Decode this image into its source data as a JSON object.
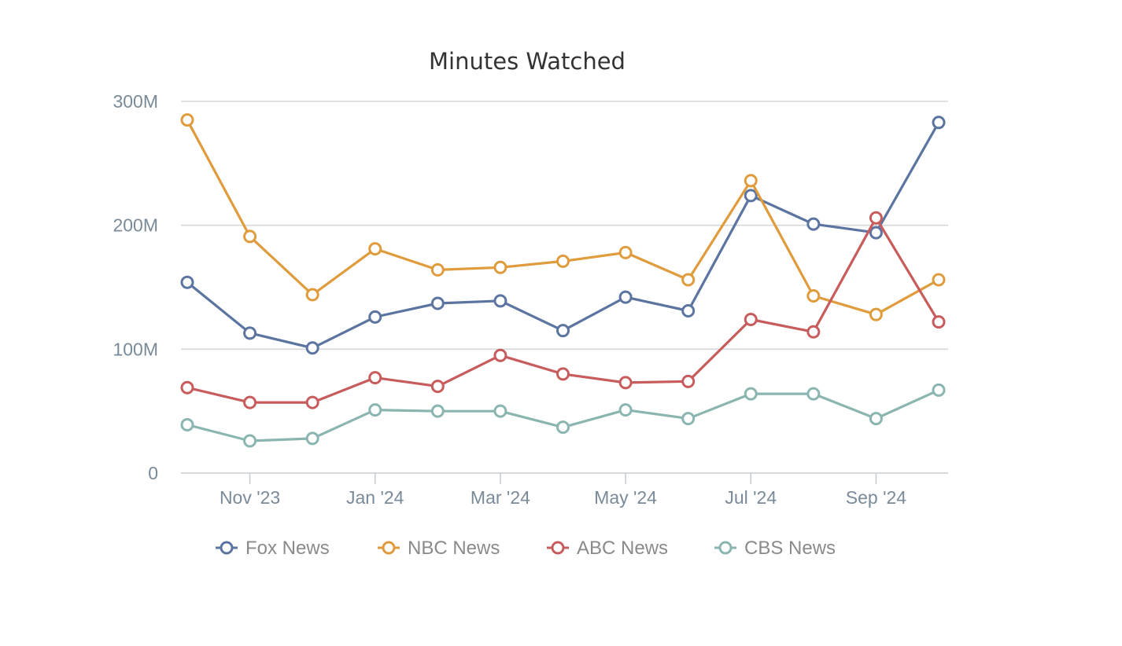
{
  "chart_data": {
    "type": "line",
    "title": "Minutes Watched",
    "xlabel": "",
    "ylabel": "",
    "ylim": [
      0,
      300
    ],
    "y_ticks": [
      {
        "value": 0,
        "label": "0"
      },
      {
        "value": 100,
        "label": "100M"
      },
      {
        "value": 200,
        "label": "200M"
      },
      {
        "value": 300,
        "label": "300M"
      }
    ],
    "x": [
      "2023-10",
      "2023-11",
      "2023-12",
      "2024-01",
      "2024-02",
      "2024-03",
      "2024-04",
      "2024-05",
      "2024-06",
      "2024-07",
      "2024-08",
      "2024-09",
      "2024-10"
    ],
    "x_ticks": [
      {
        "index": 1,
        "label": "Nov '23"
      },
      {
        "index": 3,
        "label": "Jan '24"
      },
      {
        "index": 5,
        "label": "Mar '24"
      },
      {
        "index": 7,
        "label": "May '24"
      },
      {
        "index": 9,
        "label": "Jul '24"
      },
      {
        "index": 11,
        "label": "Sep '24"
      }
    ],
    "grid": true,
    "legend_position": "bottom",
    "series": [
      {
        "name": "Fox News",
        "color": "#5b75a0",
        "values": [
          154,
          113,
          101,
          126,
          137,
          139,
          115,
          142,
          131,
          224,
          201,
          194,
          283
        ]
      },
      {
        "name": "NBC News",
        "color": "#e09c3c",
        "values": [
          285,
          191,
          144,
          181,
          164,
          166,
          171,
          178,
          156,
          236,
          143,
          128,
          156
        ]
      },
      {
        "name": "ABC News",
        "color": "#c85c5c",
        "values": [
          69,
          57,
          57,
          77,
          70,
          95,
          80,
          73,
          74,
          124,
          114,
          206,
          122
        ]
      },
      {
        "name": "CBS News",
        "color": "#8ab5b0",
        "values": [
          39,
          26,
          28,
          51,
          50,
          50,
          37,
          51,
          44,
          64,
          64,
          44,
          67
        ]
      }
    ]
  }
}
